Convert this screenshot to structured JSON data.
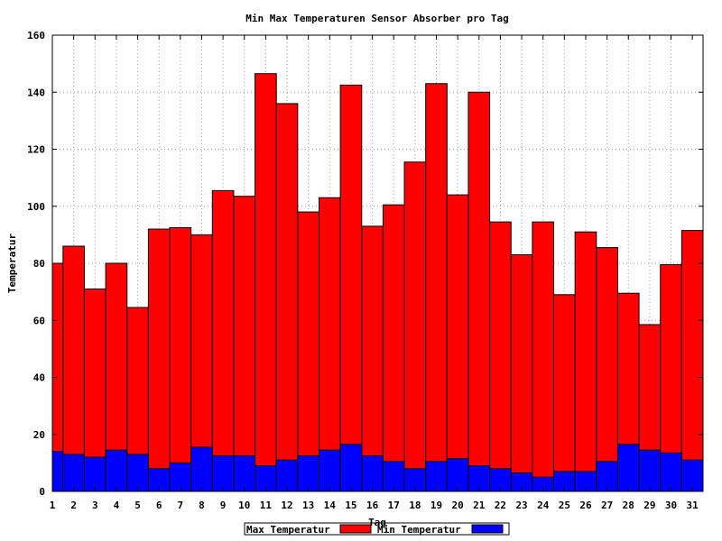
{
  "chart_data": {
    "type": "bar",
    "title": "Min Max Temperaturen Sensor Absorber pro Tag",
    "xlabel": "Tag",
    "ylabel": "Temperatur",
    "ylim": [
      0,
      160
    ],
    "yticks": [
      0,
      20,
      40,
      60,
      80,
      100,
      120,
      140,
      160
    ],
    "categories": [
      "1",
      "2",
      "3",
      "4",
      "5",
      "6",
      "7",
      "8",
      "9",
      "10",
      "11",
      "12",
      "13",
      "14",
      "15",
      "16",
      "17",
      "18",
      "19",
      "20",
      "21",
      "22",
      "23",
      "24",
      "25",
      "26",
      "27",
      "28",
      "29",
      "30",
      "31"
    ],
    "grid": true,
    "legend_position": "bottom",
    "series": [
      {
        "name": "Max Temperatur",
        "color": "#ff0000",
        "values": [
          80,
          86,
          71,
          80,
          64.5,
          92,
          92.5,
          90,
          105.5,
          103.5,
          146.5,
          136,
          98,
          103,
          142.5,
          93,
          100.5,
          115.5,
          143,
          104,
          140,
          94.5,
          83,
          94.5,
          69,
          91,
          85.5,
          69.5,
          58.5,
          79.5,
          91.5
        ]
      },
      {
        "name": "Min Temperatur",
        "color": "#0000ff",
        "values": [
          14,
          13,
          12,
          14.5,
          13,
          8,
          10,
          15.5,
          12.5,
          12.5,
          9,
          11,
          12.5,
          14.5,
          16.5,
          12.5,
          10.5,
          8,
          10.5,
          11.5,
          9,
          8,
          6.5,
          5,
          7,
          7,
          10.5,
          16.5,
          14.5,
          13.5,
          11
        ]
      }
    ]
  }
}
